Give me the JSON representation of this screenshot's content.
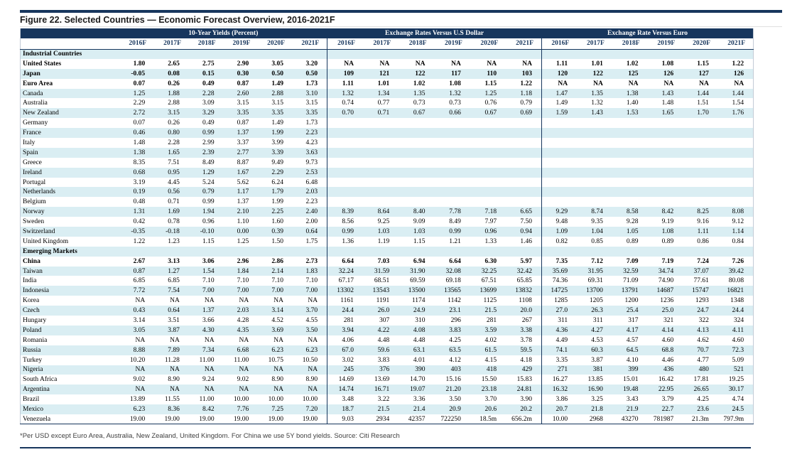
{
  "title": "Figure 22. Selected Countries — Economic Forecast Overview, 2016-2021F",
  "footnote": "*Per USD except Euro Area, Australia, New Zealand, United Kingdom. For China we use 5Y bond yields. Source: Citi Research",
  "colors": {
    "header_navy": "#17365d",
    "row_alt_blue": "#daeef3"
  },
  "table": {
    "groups": [
      {
        "label": "10-Year Yields (Percent)"
      },
      {
        "label": "Exchange Rates Versus U.S Dollar"
      },
      {
        "label": "Exchange Rate Versus Euro"
      }
    ],
    "years": [
      "2016F",
      "2017F",
      "2018F",
      "2019F",
      "2020F",
      "2021F"
    ],
    "rows": [
      {
        "t": "section",
        "label": "Industrial Countries"
      },
      {
        "t": "data",
        "label": "United States",
        "bold": true,
        "y": [
          "1.80",
          "2.65",
          "2.75",
          "2.90",
          "3.05",
          "3.20"
        ],
        "u": [
          "NA",
          "NA",
          "NA",
          "NA",
          "NA",
          "NA"
        ],
        "e": [
          "1.11",
          "1.01",
          "1.02",
          "1.08",
          "1.15",
          "1.22"
        ]
      },
      {
        "t": "data",
        "label": "Japan",
        "bold": true,
        "y": [
          "-0.05",
          "0.08",
          "0.15",
          "0.30",
          "0.50",
          "0.50"
        ],
        "u": [
          "109",
          "121",
          "122",
          "117",
          "110",
          "103"
        ],
        "e": [
          "120",
          "122",
          "125",
          "126",
          "127",
          "126"
        ]
      },
      {
        "t": "data",
        "label": "Euro Area",
        "bold": true,
        "y": [
          "0.07",
          "0.26",
          "0.49",
          "0.87",
          "1.49",
          "1.73"
        ],
        "u": [
          "1.11",
          "1.01",
          "1.02",
          "1.08",
          "1.15",
          "1.22"
        ],
        "e": [
          "NA",
          "NA",
          "NA",
          "NA",
          "NA",
          "NA"
        ]
      },
      {
        "t": "data",
        "label": "Canada",
        "bold": false,
        "y": [
          "1.25",
          "1.88",
          "2.28",
          "2.60",
          "2.88",
          "3.10"
        ],
        "u": [
          "1.32",
          "1.34",
          "1.35",
          "1.32",
          "1.25",
          "1.18"
        ],
        "e": [
          "1.47",
          "1.35",
          "1.38",
          "1.43",
          "1.44",
          "1.44"
        ]
      },
      {
        "t": "data",
        "label": "Australia",
        "bold": false,
        "y": [
          "2.29",
          "2.88",
          "3.09",
          "3.15",
          "3.15",
          "3.15"
        ],
        "u": [
          "0.74",
          "0.77",
          "0.73",
          "0.73",
          "0.76",
          "0.79"
        ],
        "e": [
          "1.49",
          "1.32",
          "1.40",
          "1.48",
          "1.51",
          "1.54"
        ]
      },
      {
        "t": "data",
        "label": "New Zealand",
        "bold": false,
        "y": [
          "2.72",
          "3.15",
          "3.29",
          "3.35",
          "3.35",
          "3.35"
        ],
        "u": [
          "0.70",
          "0.71",
          "0.67",
          "0.66",
          "0.67",
          "0.69"
        ],
        "e": [
          "1.59",
          "1.43",
          "1.53",
          "1.65",
          "1.70",
          "1.76"
        ]
      },
      {
        "t": "data",
        "label": "Germany",
        "bold": false,
        "y": [
          "0.07",
          "0.26",
          "0.49",
          "0.87",
          "1.49",
          "1.73"
        ],
        "u": [
          "",
          "",
          "",
          "",
          "",
          ""
        ],
        "e": [
          "",
          "",
          "",
          "",
          "",
          ""
        ]
      },
      {
        "t": "data",
        "label": "France",
        "bold": false,
        "y": [
          "0.46",
          "0.80",
          "0.99",
          "1.37",
          "1.99",
          "2.23"
        ],
        "u": [
          "",
          "",
          "",
          "",
          "",
          ""
        ],
        "e": [
          "",
          "",
          "",
          "",
          "",
          ""
        ]
      },
      {
        "t": "data",
        "label": "Italy",
        "bold": false,
        "y": [
          "1.48",
          "2.28",
          "2.99",
          "3.37",
          "3.99",
          "4.23"
        ],
        "u": [
          "",
          "",
          "",
          "",
          "",
          ""
        ],
        "e": [
          "",
          "",
          "",
          "",
          "",
          ""
        ]
      },
      {
        "t": "data",
        "label": "Spain",
        "bold": false,
        "y": [
          "1.38",
          "1.65",
          "2.39",
          "2.77",
          "3.39",
          "3.63"
        ],
        "u": [
          "",
          "",
          "",
          "",
          "",
          ""
        ],
        "e": [
          "",
          "",
          "",
          "",
          "",
          ""
        ]
      },
      {
        "t": "data",
        "label": "Greece",
        "bold": false,
        "y": [
          "8.35",
          "7.51",
          "8.49",
          "8.87",
          "9.49",
          "9.73"
        ],
        "u": [
          "",
          "",
          "",
          "",
          "",
          ""
        ],
        "e": [
          "",
          "",
          "",
          "",
          "",
          ""
        ]
      },
      {
        "t": "data",
        "label": "Ireland",
        "bold": false,
        "y": [
          "0.68",
          "0.95",
          "1.29",
          "1.67",
          "2.29",
          "2.53"
        ],
        "u": [
          "",
          "",
          "",
          "",
          "",
          ""
        ],
        "e": [
          "",
          "",
          "",
          "",
          "",
          ""
        ]
      },
      {
        "t": "data",
        "label": "Portugal",
        "bold": false,
        "y": [
          "3.19",
          "4.45",
          "5.24",
          "5.62",
          "6.24",
          "6.48"
        ],
        "u": [
          "",
          "",
          "",
          "",
          "",
          ""
        ],
        "e": [
          "",
          "",
          "",
          "",
          "",
          ""
        ]
      },
      {
        "t": "data",
        "label": "Netherlands",
        "bold": false,
        "y": [
          "0.19",
          "0.56",
          "0.79",
          "1.17",
          "1.79",
          "2.03"
        ],
        "u": [
          "",
          "",
          "",
          "",
          "",
          ""
        ],
        "e": [
          "",
          "",
          "",
          "",
          "",
          ""
        ]
      },
      {
        "t": "data",
        "label": "Belgium",
        "bold": false,
        "y": [
          "0.48",
          "0.71",
          "0.99",
          "1.37",
          "1.99",
          "2.23"
        ],
        "u": [
          "",
          "",
          "",
          "",
          "",
          ""
        ],
        "e": [
          "",
          "",
          "",
          "",
          "",
          ""
        ]
      },
      {
        "t": "data",
        "label": "Norway",
        "bold": false,
        "y": [
          "1.31",
          "1.69",
          "1.94",
          "2.10",
          "2.25",
          "2.40"
        ],
        "u": [
          "8.39",
          "8.64",
          "8.40",
          "7.78",
          "7.18",
          "6.65"
        ],
        "e": [
          "9.29",
          "8.74",
          "8.58",
          "8.42",
          "8.25",
          "8.08"
        ]
      },
      {
        "t": "data",
        "label": "Sweden",
        "bold": false,
        "y": [
          "0.42",
          "0.78",
          "0.96",
          "1.10",
          "1.60",
          "2.00"
        ],
        "u": [
          "8.56",
          "9.25",
          "9.09",
          "8.49",
          "7.97",
          "7.50"
        ],
        "e": [
          "9.48",
          "9.35",
          "9.28",
          "9.19",
          "9.16",
          "9.12"
        ]
      },
      {
        "t": "data",
        "label": "Switzerland",
        "bold": false,
        "y": [
          "-0.35",
          "-0.18",
          "-0.10",
          "0.00",
          "0.39",
          "0.64"
        ],
        "u": [
          "0.99",
          "1.03",
          "1.03",
          "0.99",
          "0.96",
          "0.94"
        ],
        "e": [
          "1.09",
          "1.04",
          "1.05",
          "1.08",
          "1.11",
          "1.14"
        ]
      },
      {
        "t": "data",
        "label": "United Kingdom",
        "bold": false,
        "y": [
          "1.22",
          "1.23",
          "1.15",
          "1.25",
          "1.50",
          "1.75"
        ],
        "u": [
          "1.36",
          "1.19",
          "1.15",
          "1.21",
          "1.33",
          "1.46"
        ],
        "e": [
          "0.82",
          "0.85",
          "0.89",
          "0.89",
          "0.86",
          "0.84"
        ]
      },
      {
        "t": "section",
        "label": "Emerging Markets"
      },
      {
        "t": "data",
        "label": "China",
        "bold": true,
        "y": [
          "2.67",
          "3.13",
          "3.06",
          "2.96",
          "2.86",
          "2.73"
        ],
        "u": [
          "6.64",
          "7.03",
          "6.94",
          "6.64",
          "6.30",
          "5.97"
        ],
        "e": [
          "7.35",
          "7.12",
          "7.09",
          "7.19",
          "7.24",
          "7.26"
        ]
      },
      {
        "t": "data",
        "label": "Taiwan",
        "bold": false,
        "y": [
          "0.87",
          "1.27",
          "1.54",
          "1.84",
          "2.14",
          "1.83"
        ],
        "u": [
          "32.24",
          "31.59",
          "31.90",
          "32.08",
          "32.25",
          "32.42"
        ],
        "e": [
          "35.69",
          "31.95",
          "32.59",
          "34.74",
          "37.07",
          "39.42"
        ]
      },
      {
        "t": "data",
        "label": "India",
        "bold": false,
        "y": [
          "6.85",
          "6.85",
          "7.10",
          "7.10",
          "7.10",
          "7.10"
        ],
        "u": [
          "67.17",
          "68.51",
          "69.59",
          "69.18",
          "67.51",
          "65.85"
        ],
        "e": [
          "74.36",
          "69.31",
          "71.09",
          "74.90",
          "77.61",
          "80.08"
        ]
      },
      {
        "t": "data",
        "label": "Indonesia",
        "bold": false,
        "y": [
          "7.72",
          "7.54",
          "7.00",
          "7.00",
          "7.00",
          "7.00"
        ],
        "u": [
          "13302",
          "13543",
          "13500",
          "13565",
          "13699",
          "13832"
        ],
        "e": [
          "14725",
          "13700",
          "13791",
          "14687",
          "15747",
          "16821"
        ]
      },
      {
        "t": "data",
        "label": "Korea",
        "bold": false,
        "y": [
          "NA",
          "NA",
          "NA",
          "NA",
          "NA",
          "NA"
        ],
        "u": [
          "1161",
          "1191",
          "1174",
          "1142",
          "1125",
          "1108"
        ],
        "e": [
          "1285",
          "1205",
          "1200",
          "1236",
          "1293",
          "1348"
        ]
      },
      {
        "t": "data",
        "label": "Czech",
        "bold": false,
        "y": [
          "0.43",
          "0.64",
          "1.37",
          "2.03",
          "3.14",
          "3.70"
        ],
        "u": [
          "24.4",
          "26.0",
          "24.9",
          "23.1",
          "21.5",
          "20.0"
        ],
        "e": [
          "27.0",
          "26.3",
          "25.4",
          "25.0",
          "24.7",
          "24.4"
        ]
      },
      {
        "t": "data",
        "label": "Hungary",
        "bold": false,
        "y": [
          "3.14",
          "3.51",
          "3.66",
          "4.28",
          "4.52",
          "4.55"
        ],
        "u": [
          "281",
          "307",
          "310",
          "296",
          "281",
          "267"
        ],
        "e": [
          "311",
          "311",
          "317",
          "321",
          "322",
          "324"
        ]
      },
      {
        "t": "data",
        "label": "Poland",
        "bold": false,
        "y": [
          "3.05",
          "3.87",
          "4.30",
          "4.35",
          "3.69",
          "3.50"
        ],
        "u": [
          "3.94",
          "4.22",
          "4.08",
          "3.83",
          "3.59",
          "3.38"
        ],
        "e": [
          "4.36",
          "4.27",
          "4.17",
          "4.14",
          "4.13",
          "4.11"
        ]
      },
      {
        "t": "data",
        "label": "Romania",
        "bold": false,
        "y": [
          "NA",
          "NA",
          "NA",
          "NA",
          "NA",
          "NA"
        ],
        "u": [
          "4.06",
          "4.48",
          "4.48",
          "4.25",
          "4.02",
          "3.78"
        ],
        "e": [
          "4.49",
          "4.53",
          "4.57",
          "4.60",
          "4.62",
          "4.60"
        ]
      },
      {
        "t": "data",
        "label": "Russia",
        "bold": false,
        "y": [
          "8.88",
          "7.89",
          "7.34",
          "6.68",
          "6.23",
          "6.23"
        ],
        "u": [
          "67.0",
          "59.6",
          "63.1",
          "63.5",
          "61.5",
          "59.5"
        ],
        "e": [
          "74.1",
          "60.3",
          "64.5",
          "68.8",
          "70.7",
          "72.3"
        ]
      },
      {
        "t": "data",
        "label": "Turkey",
        "bold": false,
        "y": [
          "10.20",
          "11.28",
          "11.00",
          "11.00",
          "10.75",
          "10.50"
        ],
        "u": [
          "3.02",
          "3.83",
          "4.01",
          "4.12",
          "4.15",
          "4.18"
        ],
        "e": [
          "3.35",
          "3.87",
          "4.10",
          "4.46",
          "4.77",
          "5.09"
        ]
      },
      {
        "t": "data",
        "label": "Nigeria",
        "bold": false,
        "y": [
          "NA",
          "NA",
          "NA",
          "NA",
          "NA",
          "NA"
        ],
        "u": [
          "245",
          "376",
          "390",
          "403",
          "418",
          "429"
        ],
        "e": [
          "271",
          "381",
          "399",
          "436",
          "480",
          "521"
        ]
      },
      {
        "t": "data",
        "label": "South Africa",
        "bold": false,
        "y": [
          "9.02",
          "8.90",
          "9.24",
          "9.02",
          "8.90",
          "8.90"
        ],
        "u": [
          "14.69",
          "13.69",
          "14.70",
          "15.16",
          "15.50",
          "15.83"
        ],
        "e": [
          "16.27",
          "13.85",
          "15.01",
          "16.42",
          "17.81",
          "19.25"
        ]
      },
      {
        "t": "data",
        "label": "Argentina",
        "bold": false,
        "y": [
          "NA",
          "NA",
          "NA",
          "NA",
          "NA",
          "NA"
        ],
        "u": [
          "14.74",
          "16.71",
          "19.07",
          "21.20",
          "23.18",
          "24.81"
        ],
        "e": [
          "16.32",
          "16.90",
          "19.48",
          "22.95",
          "26.65",
          "30.17"
        ]
      },
      {
        "t": "data",
        "label": "Brazil",
        "bold": false,
        "y": [
          "13.89",
          "11.55",
          "11.00",
          "10.00",
          "10.00",
          "10.00"
        ],
        "u": [
          "3.48",
          "3.22",
          "3.36",
          "3.50",
          "3.70",
          "3.90"
        ],
        "e": [
          "3.86",
          "3.25",
          "3.43",
          "3.79",
          "4.25",
          "4.74"
        ]
      },
      {
        "t": "data",
        "label": "Mexico",
        "bold": false,
        "y": [
          "6.23",
          "8.36",
          "8.42",
          "7.76",
          "7.25",
          "7.20"
        ],
        "u": [
          "18.7",
          "21.5",
          "21.4",
          "20.9",
          "20.6",
          "20.2"
        ],
        "e": [
          "20.7",
          "21.8",
          "21.9",
          "22.7",
          "23.6",
          "24.5"
        ]
      },
      {
        "t": "data",
        "label": "Venezuela",
        "bold": false,
        "y": [
          "19.00",
          "19.00",
          "19.00",
          "19.00",
          "19.00",
          "19.00"
        ],
        "u": [
          "9.03",
          "2934",
          "42357",
          "722250",
          "18.5m",
          "656.2m"
        ],
        "e": [
          "10.00",
          "2968",
          "43270",
          "781987",
          "21.3m",
          "797.9m"
        ]
      }
    ]
  }
}
